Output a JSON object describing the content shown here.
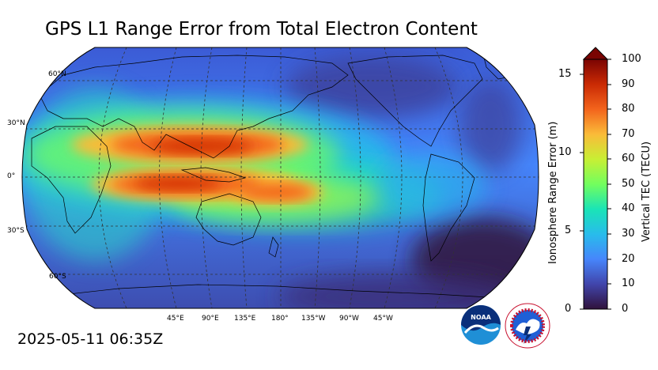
{
  "title": "GPS L1 Range Error from Total Electron Content",
  "timestamp": "2025-05-11 06:35Z",
  "map": {
    "projection": "robinson",
    "central_longitude": 180,
    "lat_labels": [
      "60°N",
      "30°N",
      "0°",
      "30°S",
      "60°S"
    ],
    "lon_labels": [
      "45°E",
      "90°E",
      "135°E",
      "180°",
      "135°W",
      "90°W",
      "45°W"
    ],
    "gridlines": true,
    "coastlines": true
  },
  "colorbar": {
    "left_axis_label": "Ionosphere Range Error (m)",
    "left_ticks": [
      "0",
      "5",
      "10",
      "15"
    ],
    "right_axis_label": "Vertical TEC (TECU)",
    "right_ticks": [
      "0",
      "10",
      "20",
      "30",
      "40",
      "50",
      "60",
      "70",
      "80",
      "90",
      "100"
    ],
    "range_tecu": [
      0,
      100
    ],
    "extend": "max",
    "colormap": "turbo"
  },
  "logos": {
    "left": "noaa-logo",
    "right": "national-weather-service-logo"
  },
  "colors": {
    "low": "#30123b",
    "mid_low": "#4686fb",
    "mid": "#1ae4b6",
    "mid_high": "#fabb39",
    "high": "#e4460a",
    "max": "#7a0403"
  }
}
